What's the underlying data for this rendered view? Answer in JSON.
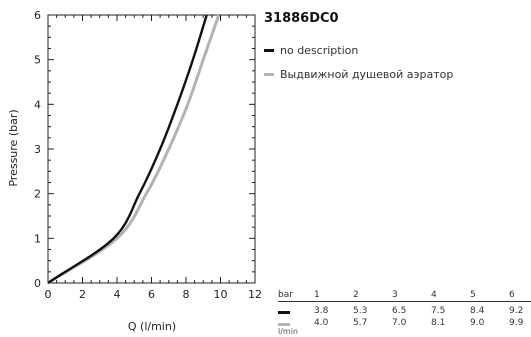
{
  "title": "31886DC0",
  "colors": {
    "series1": "#111111",
    "series2": "#b3b3b3",
    "axis": "#222222"
  },
  "chart_data": {
    "type": "line",
    "title": "31886DC0",
    "xlabel": "Q (l/min)",
    "ylabel": "Pressure (bar)",
    "xlim": [
      0,
      12
    ],
    "ylim": [
      0,
      6
    ],
    "xticks": [
      0,
      2,
      4,
      6,
      8,
      10,
      12
    ],
    "yticks": [
      0,
      1,
      2,
      3,
      4,
      5,
      6
    ],
    "grid": false,
    "legend_position": "right",
    "series": [
      {
        "name": "no description",
        "color": "#111111",
        "x": [
          0,
          3.8,
          5.3,
          6.5,
          7.5,
          8.4,
          9.2
        ],
        "y": [
          0,
          1,
          2,
          3,
          4,
          5,
          6
        ]
      },
      {
        "name": "Выдвижной душевой аэратор",
        "color": "#b3b3b3",
        "x": [
          0,
          4.0,
          5.7,
          7.0,
          8.1,
          9.0,
          9.9
        ],
        "y": [
          0,
          1,
          2,
          3,
          4,
          5,
          6
        ]
      }
    ]
  },
  "table": {
    "header_label": "bar",
    "unit_label": "l/min",
    "pressures": [
      "1",
      "2",
      "3",
      "4",
      "5",
      "6"
    ],
    "rows": [
      {
        "values": [
          "3.8",
          "5.3",
          "6.5",
          "7.5",
          "8.4",
          "9.2"
        ]
      },
      {
        "values": [
          "4.0",
          "5.7",
          "7.0",
          "8.1",
          "9.0",
          "9.9"
        ]
      }
    ]
  }
}
